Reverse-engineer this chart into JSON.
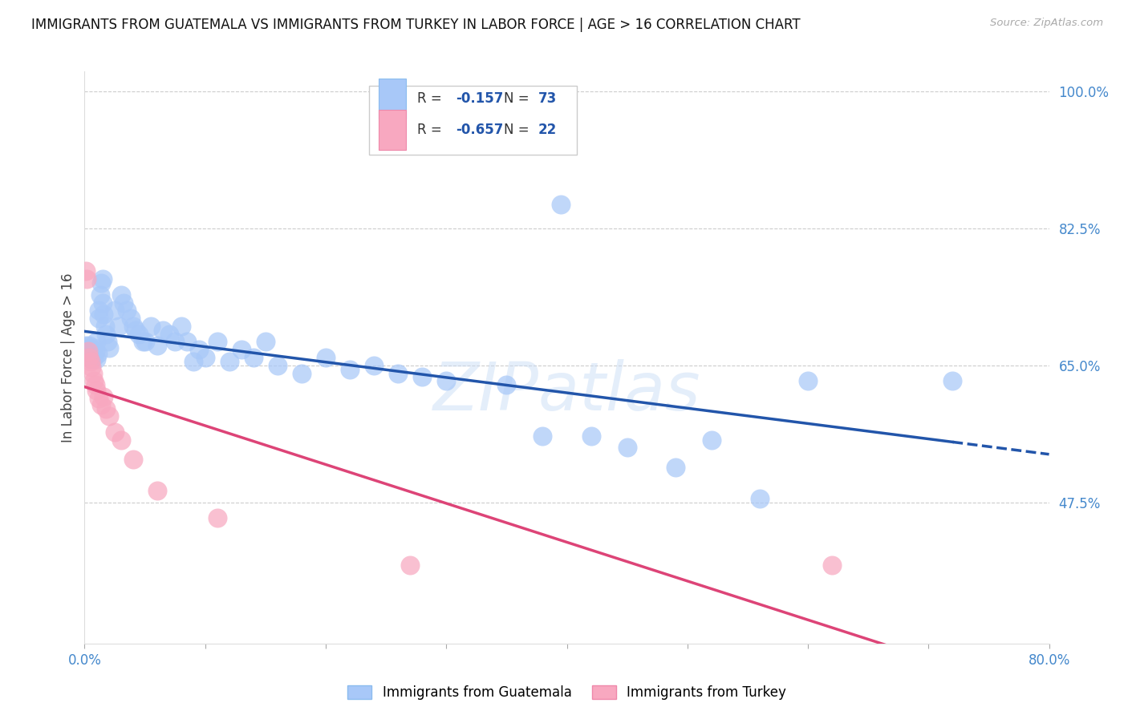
{
  "title": "IMMIGRANTS FROM GUATEMALA VS IMMIGRANTS FROM TURKEY IN LABOR FORCE | AGE > 16 CORRELATION CHART",
  "source": "Source: ZipAtlas.com",
  "ylabel": "In Labor Force | Age > 16",
  "R_guatemala": -0.157,
  "N_guatemala": 73,
  "R_turkey": -0.657,
  "N_turkey": 22,
  "color_guatemala": "#A8C8F8",
  "color_turkey": "#F8A8C0",
  "color_line_guatemala": "#2255AA",
  "color_line_turkey": "#DD4477",
  "color_axis": "#4488CC",
  "color_legend_text": "#2255AA",
  "background_color": "#FFFFFF",
  "xlim": [
    0.0,
    0.8
  ],
  "ylim": [
    0.295,
    1.025
  ],
  "right_yticks": [
    1.0,
    0.825,
    0.65,
    0.475
  ],
  "right_yticklabels": [
    "100.0%",
    "82.5%",
    "65.0%",
    "47.5%"
  ],
  "legend_labels": [
    "Immigrants from Guatemala",
    "Immigrants from Turkey"
  ],
  "watermark": "ZIPatlas",
  "guat_line_start_y": 0.68,
  "guat_line_end_y": 0.618,
  "guat_line_end_x": 0.72,
  "guat_line_dashed_end_y": 0.6,
  "turk_line_start_y": 0.7,
  "turk_line_end_y": 0.0
}
